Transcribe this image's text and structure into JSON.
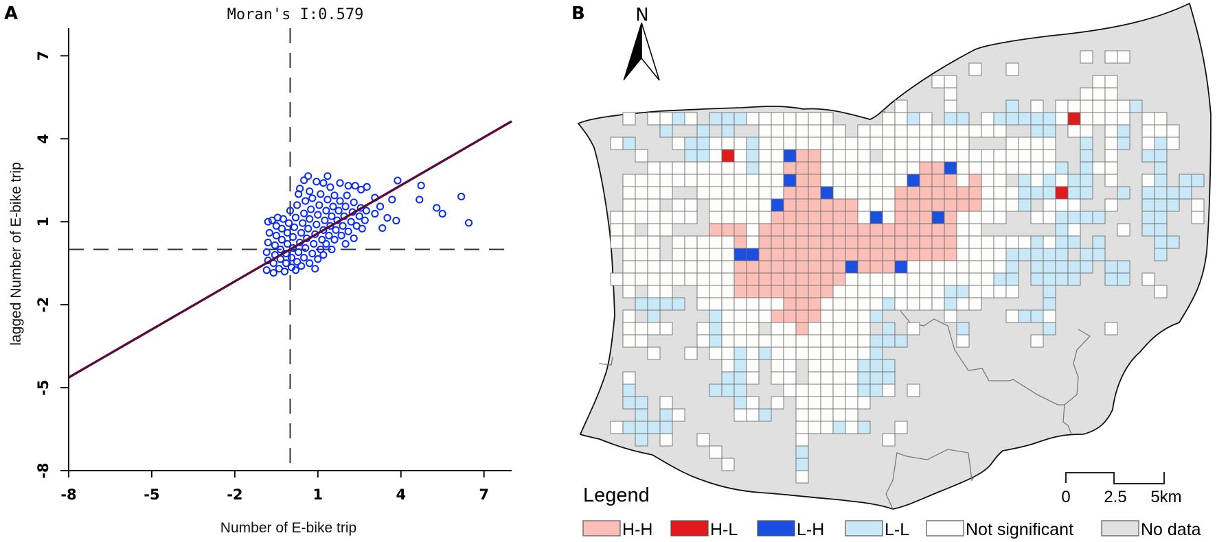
{
  "panel_a": {
    "label": "A"
  },
  "chart_data": {
    "type": "scatter",
    "title": "Moran's I:0.579",
    "moran_i": 0.579,
    "xlabel": "Number of E-bike trip",
    "ylabel": "lagged Number of E-bike trip",
    "xlim": [
      -8,
      8
    ],
    "ylim": [
      -8,
      8
    ],
    "xticks": [
      -8,
      -5,
      -2,
      1,
      4,
      7
    ],
    "yticks": [
      -8,
      -5,
      -2,
      1,
      4,
      7
    ],
    "xtick_labels": [
      "-8",
      "-5",
      "-2",
      "1",
      "4",
      "7"
    ],
    "ytick_labels": [
      "-8",
      "-5",
      "-2",
      "1",
      "4",
      "7"
    ],
    "grid": false,
    "reference_lines": {
      "x": 0,
      "y": 0
    },
    "regression": {
      "slope": 0.579,
      "intercept": 0,
      "color": "#5a0a3c"
    },
    "marker_color": "#0a2cf0",
    "points": [
      [
        -0.85,
        -0.75
      ],
      [
        -0.8,
        -0.4
      ],
      [
        -0.85,
        -0.1
      ],
      [
        -0.8,
        0.25
      ],
      [
        -0.75,
        0.6
      ],
      [
        -0.8,
        1.0
      ],
      [
        -0.65,
        1.05
      ],
      [
        -0.6,
        -0.85
      ],
      [
        -0.6,
        -0.5
      ],
      [
        -0.55,
        -0.2
      ],
      [
        -0.55,
        0.15
      ],
      [
        -0.5,
        0.5
      ],
      [
        -0.5,
        0.85
      ],
      [
        -0.45,
        1.15
      ],
      [
        -0.4,
        -0.7
      ],
      [
        -0.35,
        -0.35
      ],
      [
        -0.35,
        0.0
      ],
      [
        -0.3,
        0.35
      ],
      [
        -0.3,
        0.75
      ],
      [
        -0.25,
        1.1
      ],
      [
        -0.2,
        -0.8
      ],
      [
        -0.15,
        -0.5
      ],
      [
        -0.15,
        -0.15
      ],
      [
        -0.1,
        0.2
      ],
      [
        -0.1,
        0.6
      ],
      [
        -0.05,
        0.95
      ],
      [
        0.0,
        1.4
      ],
      [
        0.05,
        -0.65
      ],
      [
        0.05,
        -0.3
      ],
      [
        0.1,
        0.05
      ],
      [
        0.1,
        0.45
      ],
      [
        0.15,
        0.8
      ],
      [
        0.2,
        1.15
      ],
      [
        0.25,
        1.6
      ],
      [
        0.3,
        2.0
      ],
      [
        0.35,
        2.2
      ],
      [
        0.2,
        -0.75
      ],
      [
        0.25,
        -0.45
      ],
      [
        0.3,
        -0.1
      ],
      [
        0.35,
        0.25
      ],
      [
        0.4,
        0.6
      ],
      [
        0.45,
        0.95
      ],
      [
        0.5,
        1.3
      ],
      [
        0.5,
        2.5
      ],
      [
        0.55,
        1.75
      ],
      [
        0.4,
        -0.6
      ],
      [
        0.5,
        -0.3
      ],
      [
        0.55,
        0.05
      ],
      [
        0.6,
        0.4
      ],
      [
        0.65,
        0.75
      ],
      [
        0.7,
        1.1
      ],
      [
        0.7,
        2.1
      ],
      [
        0.75,
        1.45
      ],
      [
        0.8,
        1.85
      ],
      [
        0.65,
        2.65
      ],
      [
        0.7,
        -0.5
      ],
      [
        0.8,
        -0.15
      ],
      [
        0.85,
        0.2
      ],
      [
        0.9,
        0.55
      ],
      [
        0.95,
        0.9
      ],
      [
        0.95,
        2.45
      ],
      [
        1.0,
        1.25
      ],
      [
        1.05,
        1.6
      ],
      [
        1.1,
        2.0
      ],
      [
        0.9,
        -0.7
      ],
      [
        1.0,
        -0.35
      ],
      [
        1.1,
        0.0
      ],
      [
        1.15,
        0.35
      ],
      [
        1.2,
        0.7
      ],
      [
        1.2,
        2.4
      ],
      [
        1.25,
        1.05
      ],
      [
        1.3,
        1.4
      ],
      [
        1.35,
        1.8
      ],
      [
        1.35,
        2.65
      ],
      [
        1.2,
        -0.2
      ],
      [
        1.3,
        0.2
      ],
      [
        1.4,
        0.5
      ],
      [
        1.45,
        0.85
      ],
      [
        1.45,
        2.25
      ],
      [
        1.5,
        1.2
      ],
      [
        1.55,
        1.55
      ],
      [
        1.6,
        1.95
      ],
      [
        1.5,
        0.0
      ],
      [
        1.6,
        0.35
      ],
      [
        1.65,
        0.7
      ],
      [
        1.7,
        1.05
      ],
      [
        1.75,
        1.4
      ],
      [
        1.8,
        1.75
      ],
      [
        1.8,
        2.4
      ],
      [
        1.85,
        0.5
      ],
      [
        1.9,
        0.85
      ],
      [
        1.95,
        1.2
      ],
      [
        2.0,
        1.55
      ],
      [
        2.05,
        1.95
      ],
      [
        2.1,
        2.3
      ],
      [
        2.0,
        0.2
      ],
      [
        2.1,
        0.65
      ],
      [
        2.2,
        1.0
      ],
      [
        2.25,
        1.35
      ],
      [
        2.3,
        1.7
      ],
      [
        2.35,
        2.3
      ],
      [
        2.3,
        0.4
      ],
      [
        2.4,
        0.85
      ],
      [
        2.5,
        1.2
      ],
      [
        2.55,
        1.5
      ],
      [
        2.56,
        2.16
      ],
      [
        2.6,
        0.75
      ],
      [
        2.7,
        1.05
      ],
      [
        2.77,
        2.26
      ],
      [
        2.75,
        1.4
      ],
      [
        3.06,
        1.87
      ],
      [
        3.06,
        1.29
      ],
      [
        3.25,
        1.55
      ],
      [
        3.33,
        0.77
      ],
      [
        3.51,
        1.14
      ],
      [
        3.68,
        1.8
      ],
      [
        3.83,
        1.04
      ],
      [
        3.88,
        2.49
      ],
      [
        4.67,
        1.8
      ],
      [
        4.73,
        2.31
      ],
      [
        5.29,
        1.5
      ],
      [
        5.5,
        1.29
      ],
      [
        6.18,
        1.91
      ],
      [
        6.45,
        0.96
      ]
    ]
  },
  "panel_b": {
    "label": "B",
    "north_label": "N",
    "legend_title": "Legend",
    "legend": [
      {
        "code": "p",
        "label": "H-H",
        "color": "#fcbfb7"
      },
      {
        "code": "r",
        "label": "H-L",
        "color": "#e01b1e"
      },
      {
        "code": "b",
        "label": "L-H",
        "color": "#1b4fe0"
      },
      {
        "code": "c",
        "label": "L-L",
        "color": "#c9e9f8"
      },
      {
        "code": "w",
        "label": "Not significant",
        "color": "#fdfdfb"
      },
      {
        "code": ".",
        "label": "No data",
        "color": "#e0e0e0"
      }
    ],
    "scale_bar": {
      "labels": [
        "0",
        "2.5",
        "5km"
      ]
    },
    "grid_rows": [
      "......................................w.ww.......",
      ".............................w..w...............",
      "..........................ww...........ww.......",
      "...........................w..........www.......",
      ".......................w...w....c.w.wwwwwwc.....",
      ".w.wwcw.cccwwwwwww....wwcw.cc.wcccccwrwwww.ww...",
      "....c..c.c..wwwwwww.wwwwwwwwwwww..cc.ww.wc.www..",
      "wc...wccwwwcwwwwwwwwwwwwwwwww...wwww..c.wc.wcw..",
      "..w...ccwrwcwwbppwwww.wwwwwwwwwwwwww..c.w..cc...",
      "...wwwwwwwwcwwpppwwwwwwwwppbwwwwwwwwc.cww...c...",
      ".wwwwwwwwwwwwwbppwwwwwwwbpppwpww.cwcwcc.w..wc.cc",
      ".wwww..wwwwwwwpppbwwwwwpppppppwwwcccrcc..c.cccc.",
      ".www.ww.wwwwwbppppppwwwpppppppwwwc.www..w..ccc.w",
      "wwwwwww.wwwwwpppppppwbwpppbpwwww..wwcccc...cc..w",
      "ww.ww...pppwppppppppppppppppww......cw...w.cc...",
      "wwww.wwwwwpwppppppppppppppppwwwwwwcwcc.c....cc...",
      ".www.wwwwwbbppppppppppppppppwwwwccccc.cc....c...",
      ".wwwwwwwwwpppppppppbpppbwwwwwwwwc.ccccc.cc......",
      "wwwwwwwwwwpppppppppwwwwwwwwwwwwcc.cccc..cc.w....",
      ".w.ww..wwwppppppppwwwwwwwwwccwwww..c........w...",
      "..cccc.wwwwwwwpppwwwwwcwwwwcww.....c............",
      ".w.c....cwwwwppppwwwwc.....w....wccw............",
      ".wwww..wcwww.wwpwwwww.c.w...c......c....w.......",
      ".ww....wcwwwwwwwwwwwwccc....w.....w.............",
      "...w..w.wwcwcwwwwwwwwc..........................",
      ".........wcw.ww.wwwwccc.........................",
      ".w.......ccw.ww.wwwwccc.........................",
      ".c......ccc...wwwwwwccw.w.......................",
      ".cc.w.....cw.w.wwwwww...........................",
      "..c.cw....wwc..wwwww............................",
      "wcccc..........wwwcwc..w........................",
      "..c.w..w.......w......w.........................",
      "........w......c................................",
      ".........w.....c................................",
      "...............w................................"
    ]
  }
}
